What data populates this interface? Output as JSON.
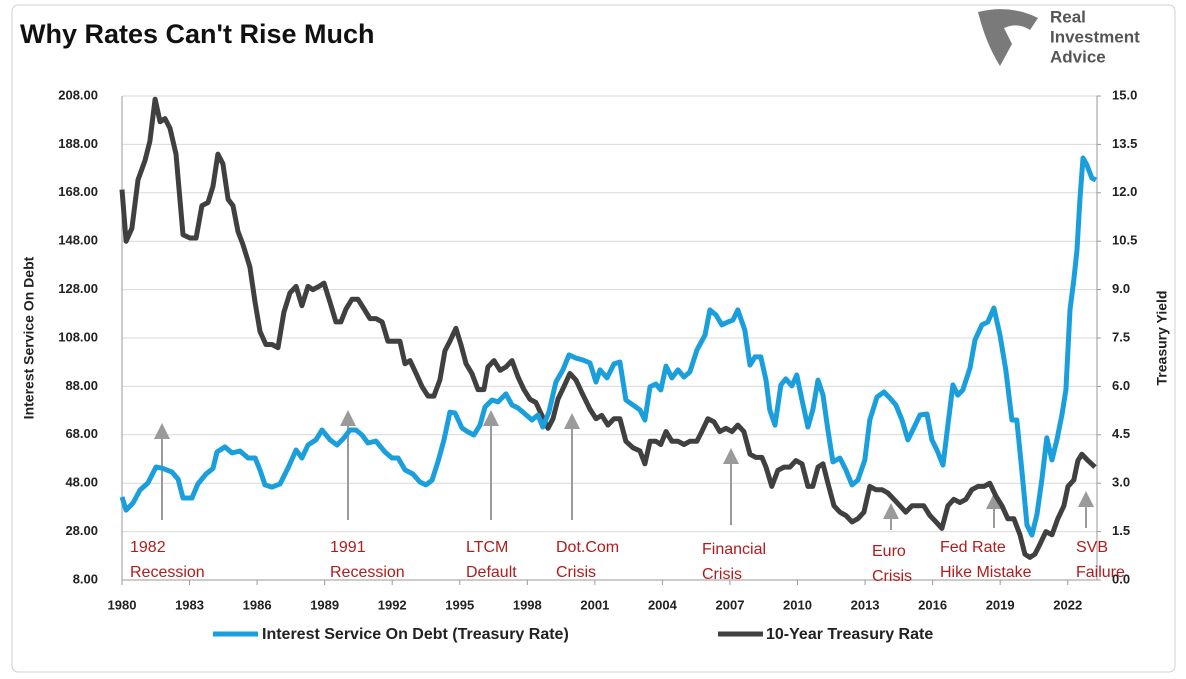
{
  "chart_data": {
    "type": "line",
    "title": "Why Rates Can't Rise Much",
    "logo": [
      "Real",
      "Investment",
      "Advice"
    ],
    "y_label": "Interest Service On Debt",
    "y2_label": "Treasury Yield",
    "xlim": [
      1980,
      2023.3
    ],
    "xticks": [
      1980,
      1983,
      1986,
      1989,
      1992,
      1995,
      1998,
      2001,
      2004,
      2007,
      2010,
      2013,
      2016,
      2019,
      2022
    ],
    "ylim": [
      8,
      208
    ],
    "yticks": [
      {
        "value": 8,
        "label": "8.00"
      },
      {
        "value": 28,
        "label": "28.00"
      },
      {
        "value": 48,
        "label": "48.00"
      },
      {
        "value": 68,
        "label": "68.00"
      },
      {
        "value": 88,
        "label": "88.00"
      },
      {
        "value": 108,
        "label": "108.00"
      },
      {
        "value": 128,
        "label": "128.00"
      },
      {
        "value": 148,
        "label": "148.00"
      },
      {
        "value": 168,
        "label": "168.00"
      },
      {
        "value": 188,
        "label": "188.00"
      },
      {
        "value": 208,
        "label": "208.00"
      }
    ],
    "y2lim": [
      0,
      15
    ],
    "y2ticks": [
      {
        "value": 0,
        "label": "0.0"
      },
      1.5,
      {
        "value": 3,
        "label": "3.0"
      },
      4.5,
      {
        "value": 6,
        "label": "6.0"
      },
      7.5,
      {
        "value": 9,
        "label": "9.0"
      },
      10.5,
      {
        "value": 12,
        "label": "12.0"
      },
      13.5,
      {
        "value": 15,
        "label": "15.0"
      }
    ],
    "grid": true,
    "legend": "bottom",
    "series": [
      {
        "name": "Interest Service On Debt (Treasury Rate)",
        "color": "#1a9fdc",
        "x": [
          1980.0,
          1980.18,
          1980.49,
          1980.8,
          1981.15,
          1981.51,
          1981.82,
          1982.22,
          1982.49,
          1982.71,
          1983.11,
          1983.37,
          1983.73,
          1984.04,
          1984.22,
          1984.57,
          1984.88,
          1985.24,
          1985.6,
          1985.91,
          1986.13,
          1986.35,
          1986.66,
          1987.02,
          1987.37,
          1987.73,
          1987.99,
          1988.26,
          1988.61,
          1988.88,
          1989.24,
          1989.55,
          1989.86,
          1990.12,
          1990.39,
          1990.66,
          1990.92,
          1991.28,
          1991.68,
          1991.99,
          1992.26,
          1992.57,
          1992.92,
          1993.23,
          1993.5,
          1993.77,
          1994.03,
          1994.3,
          1994.56,
          1994.79,
          1995.1,
          1995.36,
          1995.63,
          1995.9,
          1996.12,
          1996.43,
          1996.7,
          1997.05,
          1997.32,
          1997.58,
          1997.9,
          1998.21,
          1998.47,
          1998.69,
          1998.96,
          1999.27,
          1999.58,
          1999.85,
          2000.16,
          2000.47,
          2000.78,
          2001.05,
          2001.23,
          2001.54,
          2001.85,
          2002.11,
          2002.38,
          2002.69,
          2003.0,
          2003.22,
          2003.45,
          2003.71,
          2003.93,
          2004.16,
          2004.42,
          2004.69,
          2004.96,
          2005.22,
          2005.53,
          2005.89,
          2006.11,
          2006.38,
          2006.64,
          2006.91,
          2007.13,
          2007.35,
          2007.66,
          2007.89,
          2008.11,
          2008.37,
          2008.6,
          2008.77,
          2009.0,
          2009.26,
          2009.48,
          2009.75,
          2009.97,
          2010.2,
          2010.46,
          2010.68,
          2010.91,
          2011.13,
          2011.35,
          2011.57,
          2011.88,
          2012.15,
          2012.42,
          2012.68,
          2012.99,
          2013.21,
          2013.53,
          2013.84,
          2014.1,
          2014.37,
          2014.64,
          2014.9,
          2015.12,
          2015.44,
          2015.75,
          2015.97,
          2016.19,
          2016.46,
          2016.68,
          2016.9,
          2017.12,
          2017.34,
          2017.66,
          2017.88,
          2018.19,
          2018.45,
          2018.72,
          2018.99,
          2019.25,
          2019.52,
          2019.74,
          2019.96,
          2020.19,
          2020.41,
          2020.63,
          2020.85,
          2021.07,
          2021.3,
          2021.52,
          2021.74,
          2021.92,
          2022.1,
          2022.27,
          2022.41,
          2022.54,
          2022.68,
          2022.85,
          2023.07,
          2023.25
        ],
        "values": [
          42.3,
          36.9,
          39.8,
          45.2,
          48.1,
          54.7,
          54.1,
          52.6,
          49.7,
          41.9,
          41.9,
          47.7,
          51.8,
          54.1,
          60.9,
          63,
          60.5,
          61.3,
          58.4,
          58.4,
          53.5,
          47.3,
          46.4,
          47.7,
          54.3,
          61.7,
          58.4,
          63.8,
          65.9,
          70,
          65.9,
          63.8,
          66.7,
          70,
          70,
          67.9,
          64.6,
          65.4,
          60.9,
          58.4,
          58.4,
          53.5,
          51.8,
          48.5,
          47.3,
          49.3,
          56.8,
          65.9,
          77.4,
          77,
          70.8,
          69.2,
          67.9,
          72,
          79.5,
          82.4,
          81.6,
          84.9,
          80.3,
          79.1,
          76.6,
          74.1,
          76.2,
          71.2,
          77.4,
          89.8,
          94.8,
          101,
          99.7,
          98.9,
          97.7,
          89.8,
          94.8,
          91.5,
          97.3,
          98.1,
          82.4,
          80.3,
          78.3,
          74.1,
          87.8,
          89,
          86.5,
          96.4,
          91.5,
          94.8,
          91.9,
          94,
          103,
          109.2,
          119.6,
          117.5,
          113.4,
          114.6,
          115.4,
          119.6,
          111.3,
          96.8,
          100.2,
          100.2,
          90.6,
          78.3,
          72,
          88.6,
          91.1,
          88.2,
          92.7,
          82.4,
          71.2,
          78.3,
          90.6,
          84.4,
          70,
          56.8,
          58.4,
          53.5,
          47.3,
          49.3,
          57.6,
          74.1,
          83.6,
          85.7,
          83.2,
          80.3,
          74.1,
          65.9,
          70,
          76.2,
          76.6,
          65.9,
          61.7,
          55.5,
          72,
          88.6,
          84.4,
          86.5,
          95.6,
          107.2,
          113.4,
          114.6,
          120.4,
          109.2,
          94.8,
          74.1,
          74.1,
          53.5,
          30.7,
          26.6,
          34.9,
          49.3,
          66.7,
          57.6,
          65.9,
          76.2,
          86.5,
          119.6,
          132,
          144.4,
          165.1,
          182.4,
          179.5,
          174.1,
          173.3
        ]
      },
      {
        "name": "10-Year Treasury Rate",
        "color": "#404040",
        "axis": "y2",
        "x": [
          1980.0,
          1980.18,
          1980.44,
          1980.71,
          1981.02,
          1981.24,
          1981.47,
          1981.69,
          1981.91,
          1982.13,
          1982.4,
          1982.71,
          1983.02,
          1983.29,
          1983.55,
          1983.82,
          1984.04,
          1984.26,
          1984.48,
          1984.71,
          1984.93,
          1985.15,
          1985.37,
          1985.68,
          1985.91,
          1986.13,
          1986.39,
          1986.66,
          1986.93,
          1987.19,
          1987.46,
          1987.73,
          1987.99,
          1988.26,
          1988.48,
          1988.75,
          1988.97,
          1989.24,
          1989.5,
          1989.72,
          1989.95,
          1990.21,
          1990.48,
          1990.75,
          1991.01,
          1991.28,
          1991.55,
          1991.81,
          1992.08,
          1992.34,
          1992.57,
          1992.79,
          1993.06,
          1993.32,
          1993.59,
          1993.85,
          1994.12,
          1994.34,
          1994.56,
          1994.83,
          1995.05,
          1995.28,
          1995.54,
          1995.81,
          1996.07,
          1996.25,
          1996.52,
          1996.79,
          1997.05,
          1997.32,
          1997.58,
          1997.85,
          1998.12,
          1998.38,
          1998.65,
          1998.92,
          1999.14,
          1999.36,
          1999.63,
          1999.89,
          2000.16,
          2000.43,
          2000.78,
          2001.05,
          2001.31,
          2001.58,
          2001.85,
          2002.11,
          2002.38,
          2002.69,
          2003.0,
          2003.22,
          2003.45,
          2003.71,
          2003.93,
          2004.16,
          2004.42,
          2004.69,
          2004.96,
          2005.22,
          2005.53,
          2005.75,
          2006.02,
          2006.29,
          2006.55,
          2006.82,
          2007.09,
          2007.35,
          2007.62,
          2007.89,
          2008.15,
          2008.42,
          2008.6,
          2008.86,
          2009.13,
          2009.4,
          2009.66,
          2009.93,
          2010.2,
          2010.46,
          2010.68,
          2010.91,
          2011.13,
          2011.35,
          2011.62,
          2011.88,
          2012.15,
          2012.42,
          2012.68,
          2012.95,
          2013.21,
          2013.48,
          2013.75,
          2014.01,
          2014.28,
          2014.55,
          2014.81,
          2015.08,
          2015.35,
          2015.61,
          2015.88,
          2016.15,
          2016.41,
          2016.68,
          2016.94,
          2017.21,
          2017.48,
          2017.74,
          2018.01,
          2018.28,
          2018.54,
          2018.81,
          2019.08,
          2019.34,
          2019.61,
          2019.88,
          2020.1,
          2020.32,
          2020.54,
          2020.76,
          2021.03,
          2021.3,
          2021.56,
          2021.83,
          2022.01,
          2022.27,
          2022.45,
          2022.63,
          2022.9,
          2023.21
        ],
        "values": [
          12.1,
          10.5,
          10.9,
          12.4,
          13.0,
          13.6,
          14.9,
          14.2,
          14.3,
          14.0,
          13.2,
          10.7,
          10.6,
          10.6,
          11.6,
          11.7,
          12.2,
          13.2,
          12.9,
          11.8,
          11.6,
          10.8,
          10.4,
          9.7,
          8.6,
          7.7,
          7.3,
          7.3,
          7.2,
          8.3,
          8.9,
          9.1,
          8.5,
          9.1,
          9.0,
          9.1,
          9.2,
          8.6,
          8.0,
          8.0,
          8.4,
          8.7,
          8.7,
          8.4,
          8.1,
          8.1,
          8.0,
          7.4,
          7.4,
          7.4,
          6.7,
          6.8,
          6.4,
          6.0,
          5.7,
          5.7,
          6.2,
          7.1,
          7.4,
          7.8,
          7.3,
          6.7,
          6.4,
          5.9,
          5.9,
          6.6,
          6.8,
          6.5,
          6.6,
          6.8,
          6.3,
          5.9,
          5.6,
          5.5,
          5.1,
          4.7,
          5.0,
          5.6,
          6.0,
          6.4,
          6.2,
          5.8,
          5.3,
          5.0,
          5.1,
          4.8,
          5.0,
          5.0,
          4.3,
          4.1,
          4.0,
          3.6,
          4.3,
          4.3,
          4.2,
          4.6,
          4.3,
          4.3,
          4.2,
          4.3,
          4.3,
          4.6,
          5.0,
          4.9,
          4.6,
          4.7,
          4.6,
          4.8,
          4.6,
          3.9,
          3.8,
          3.8,
          3.5,
          2.9,
          3.4,
          3.5,
          3.5,
          3.7,
          3.6,
          2.9,
          2.9,
          3.5,
          3.6,
          3.0,
          2.3,
          2.1,
          2.0,
          1.8,
          1.9,
          2.1,
          2.9,
          2.8,
          2.8,
          2.7,
          2.5,
          2.3,
          2.1,
          2.3,
          2.3,
          2.3,
          2.0,
          1.8,
          1.6,
          2.3,
          2.5,
          2.4,
          2.5,
          2.8,
          2.9,
          2.9,
          3.0,
          2.6,
          2.3,
          1.9,
          1.9,
          1.4,
          0.8,
          0.7,
          0.8,
          1.1,
          1.5,
          1.4,
          1.9,
          2.3,
          2.9,
          3.1,
          3.7,
          3.9,
          3.7,
          3.5
        ]
      }
    ],
    "annotations": [
      [
        "1982",
        "Recession"
      ],
      [
        "1991",
        "Recession"
      ],
      [
        "LTCM",
        "Default"
      ],
      [
        "Dot.Com",
        "Crisis"
      ],
      [
        "Financial",
        "Crisis"
      ],
      [
        "Euro",
        "Crisis"
      ],
      [
        "Fed Rate",
        "Hike Mistake"
      ],
      [
        "SVB",
        "Failure"
      ]
    ]
  }
}
